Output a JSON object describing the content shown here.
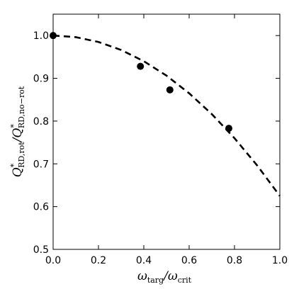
{
  "chart_data": {
    "type": "scatter",
    "title": "",
    "xlabel": "ω_targ/ω_crit",
    "ylabel": "Q*_RD,rot/Q*_RD,no-rot",
    "xlim": [
      0.0,
      1.0
    ],
    "ylim": [
      0.5,
      1.05
    ],
    "xticks": [
      "0.0",
      "0.2",
      "0.4",
      "0.6",
      "0.8",
      "1.0"
    ],
    "yticks": [
      "0.5",
      "0.6",
      "0.7",
      "0.8",
      "0.9",
      "1.0"
    ],
    "grid": false,
    "series": [
      {
        "style": "points",
        "color": "#000000",
        "x": [
          0.0,
          0.385,
          0.515,
          0.775
        ],
        "y": [
          1.0,
          0.928,
          0.873,
          0.783
        ]
      },
      {
        "style": "dashed-line",
        "color": "#000000",
        "x": [
          0.0,
          0.1,
          0.2,
          0.3,
          0.4,
          0.5,
          0.6,
          0.7,
          0.8,
          0.9,
          1.0
        ],
        "y": [
          1.0,
          0.9963,
          0.985,
          0.9663,
          0.94,
          0.9063,
          0.865,
          0.8163,
          0.76,
          0.6963,
          0.625
        ]
      }
    ]
  }
}
